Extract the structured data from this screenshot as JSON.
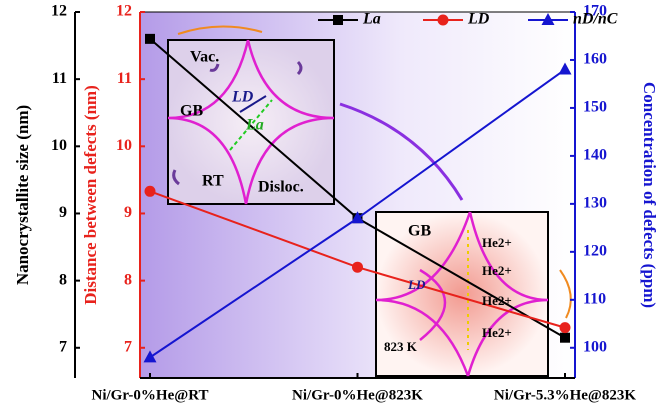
{
  "chart_data": {
    "type": "line",
    "categories": [
      "Ni/Gr-0%He@RT",
      "Ni/Gr-0%He@823K",
      "Ni/Gr-5.3%He@823K"
    ],
    "ylabel": "Nanocrystallite size (nm)",
    "y3label": "Distance between defects (nm)",
    "y2label": "Concentration of  defects (ppm)",
    "ylim": [
      6.55,
      12
    ],
    "yticks": [
      7,
      8,
      9,
      10,
      11,
      12
    ],
    "y3lim": [
      6.55,
      12
    ],
    "y3ticks": [
      7,
      8,
      9,
      10,
      11,
      12
    ],
    "y2lim": [
      93.7,
      170
    ],
    "y2ticks": [
      100,
      110,
      120,
      130,
      140,
      150,
      160,
      170
    ],
    "series": [
      {
        "name": "La",
        "color": "#000000",
        "marker": "square",
        "axis": "y",
        "values": [
          11.6,
          8.93,
          7.15
        ]
      },
      {
        "name": "LD",
        "color": "#e8221c",
        "marker": "circle",
        "axis": "y3",
        "values": [
          9.33,
          8.2,
          7.3
        ]
      },
      {
        "name": "nD/nC",
        "color": "#1515d0",
        "marker": "triangle",
        "axis": "y2",
        "values": [
          98,
          127,
          158
        ]
      }
    ],
    "annotations": [
      "Vac.",
      "GB",
      "LD",
      "La",
      "RT",
      "Disloc.",
      "GB",
      "He2+",
      "He2+",
      "He2+",
      "He2+",
      "LD",
      "823 K"
    ]
  }
}
